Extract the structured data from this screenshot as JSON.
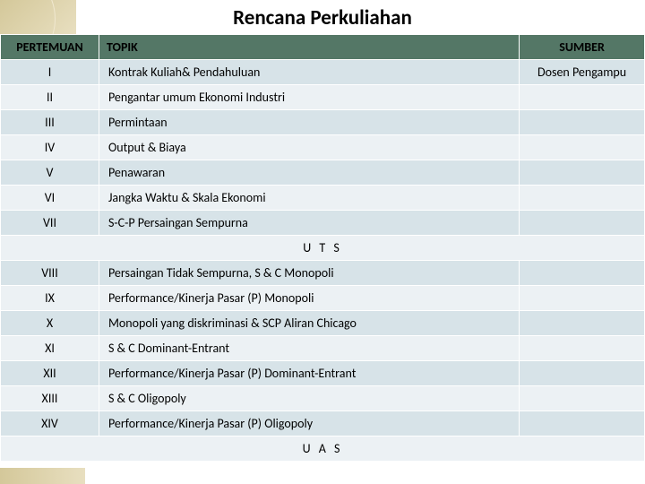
{
  "title": "Rencana Perkuliahan",
  "headers": {
    "pertemuan": "PERTEMUAN",
    "topik": "TOPIK",
    "sumber": "SUMBER"
  },
  "colors": {
    "header_bg": "#547766",
    "row_odd": "#d7e3e8",
    "row_even": "#ecf1f4",
    "deco_bg": "#d4c89a",
    "text": "#000000"
  },
  "layout": {
    "col_widths": {
      "pertemuan": 110,
      "topik": 470,
      "sumber": 140
    },
    "font_family": "Calibri",
    "title_fontsize": 23,
    "body_fontsize": 14
  },
  "rows": [
    {
      "pertemuan": "I",
      "topik": "Kontrak Kuliah& Pendahuluan",
      "sumber": "Dosen Pengampu"
    },
    {
      "pertemuan": "II",
      "topik": "Pengantar umum Ekonomi Industri",
      "sumber": ""
    },
    {
      "pertemuan": "III",
      "topik": "Permintaan",
      "sumber": ""
    },
    {
      "pertemuan": "IV",
      "topik": "Output & Biaya",
      "sumber": ""
    },
    {
      "pertemuan": "V",
      "topik": "Penawaran",
      "sumber": ""
    },
    {
      "pertemuan": "VI",
      "topik": "Jangka Waktu & Skala Ekonomi",
      "sumber": ""
    },
    {
      "pertemuan": "VII",
      "topik": "S-C-P Persaingan Sempurna",
      "sumber": ""
    }
  ],
  "divider1": "U T S",
  "rows2": [
    {
      "pertemuan": "VIII",
      "topik": "Persaingan Tidak Sempurna, S & C Monopoli",
      "sumber": ""
    },
    {
      "pertemuan": "IX",
      "topik": "Performance/Kinerja Pasar (P) Monopoli",
      "sumber": ""
    },
    {
      "pertemuan": "X",
      "topik": "Monopoli yang diskriminasi & SCP Aliran Chicago",
      "sumber": ""
    },
    {
      "pertemuan": "XI",
      "topik": "S & C Dominant-Entrant",
      "sumber": ""
    },
    {
      "pertemuan": "XII",
      "topik": "Performance/Kinerja Pasar (P) Dominant-Entrant",
      "sumber": ""
    },
    {
      "pertemuan": "XIII",
      "topik": "S & C Oligopoly",
      "sumber": ""
    },
    {
      "pertemuan": "XIV",
      "topik": "Performance/Kinerja Pasar (P) Oligopoly",
      "sumber": ""
    }
  ],
  "divider2": "U A S"
}
